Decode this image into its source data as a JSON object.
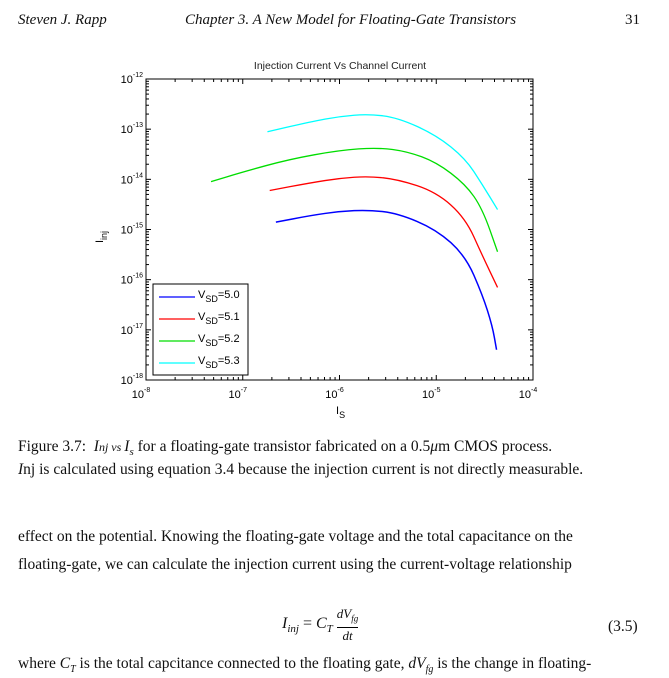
{
  "header": {
    "author": "Steven J. Rapp",
    "chapter": "Chapter 3.  A New Model for Floating-Gate Transistors",
    "page_number": "31"
  },
  "chart_data": {
    "type": "line",
    "title": "Injection Current Vs Channel Current",
    "xlabel": "I",
    "xlabel_sub": "S",
    "ylabel": "I",
    "ylabel_sub": "inj",
    "x_scale": "log",
    "y_scale": "log",
    "xlim": [
      1e-08,
      0.0001
    ],
    "ylim": [
      1e-18,
      1e-12
    ],
    "x_ticks": [
      {
        "base": "10",
        "exp": "-8"
      },
      {
        "base": "10",
        "exp": "-7"
      },
      {
        "base": "10",
        "exp": "-6"
      },
      {
        "base": "10",
        "exp": "-5"
      },
      {
        "base": "10",
        "exp": "-4"
      }
    ],
    "y_ticks": [
      {
        "base": "10",
        "exp": "-12"
      },
      {
        "base": "10",
        "exp": "-13"
      },
      {
        "base": "10",
        "exp": "-14"
      },
      {
        "base": "10",
        "exp": "-15"
      },
      {
        "base": "10",
        "exp": "-16"
      },
      {
        "base": "10",
        "exp": "-17"
      },
      {
        "base": "10",
        "exp": "-18"
      }
    ],
    "grid": false,
    "legend_position": "bottom-left",
    "series": [
      {
        "name": "V",
        "sub": "SD",
        "val": "=5.0",
        "color": "#0000ff",
        "points": [
          [
            2.2e-07,
            1.4e-15
          ],
          [
            5e-07,
            1.9e-15
          ],
          [
            1e-06,
            2.3e-15
          ],
          [
            2e-06,
            2.45e-15
          ],
          [
            4e-06,
            2.1e-15
          ],
          [
            1e-05,
            1e-15
          ],
          [
            2e-05,
            3e-16
          ],
          [
            3e-05,
            5e-17
          ],
          [
            3.8e-05,
            1.2e-17
          ],
          [
            4.2e-05,
            4e-18
          ]
        ]
      },
      {
        "name": "V",
        "sub": "SD",
        "val": "=5.1",
        "color": "#ff0000",
        "points": [
          [
            1.9e-07,
            6e-15
          ],
          [
            5e-07,
            8.5e-15
          ],
          [
            1e-06,
            1.05e-14
          ],
          [
            2e-06,
            1.15e-14
          ],
          [
            4e-06,
            1e-14
          ],
          [
            1e-05,
            5.6e-15
          ],
          [
            2e-05,
            1.7e-15
          ],
          [
            3e-05,
            3e-16
          ],
          [
            4.3e-05,
            7e-17
          ]
        ]
      },
      {
        "name": "V",
        "sub": "SD",
        "val": "=5.2",
        "color": "#00dd00",
        "points": [
          [
            4.7e-08,
            9e-15
          ],
          [
            1e-07,
            1.4e-14
          ],
          [
            3e-07,
            2.5e-14
          ],
          [
            1e-06,
            3.8e-14
          ],
          [
            2.5e-06,
            4.3e-14
          ],
          [
            5e-06,
            3.6e-14
          ],
          [
            1e-05,
            2.2e-14
          ],
          [
            2e-05,
            8e-15
          ],
          [
            3e-05,
            2.6e-15
          ],
          [
            4.3e-05,
            3.6e-16
          ]
        ]
      },
      {
        "name": "V",
        "sub": "SD",
        "val": "=5.3",
        "color": "#00ffff",
        "points": [
          [
            1.8e-07,
            8.9e-14
          ],
          [
            5e-07,
            1.4e-13
          ],
          [
            1e-06,
            1.8e-13
          ],
          [
            2e-06,
            2e-13
          ],
          [
            4e-06,
            1.7e-13
          ],
          [
            1e-05,
            7.6e-14
          ],
          [
            2e-05,
            2.6e-14
          ],
          [
            3e-05,
            7.8e-15
          ],
          [
            4.3e-05,
            2.5e-15
          ]
        ]
      }
    ]
  },
  "caption": {
    "label": "Figure 3.7:",
    "line1_a": "I",
    "line1_b": "nj vs ",
    "line1_c": "I",
    "line1_d": "s",
    "line1_e": " for a floating-gate transistor fabricated on a 0.5",
    "line1_f": "μ",
    "line1_g": "m CMOS process.",
    "line2_a": "I",
    "line2_b": "nj is calculated using equation 3.4 because the injection current is not directly measurable."
  },
  "body": {
    "line1": "effect on the potential.  Knowing the floating-gate voltage and the total capacitance on the",
    "line2": "floating-gate, we can calculate the injection current using the current-voltage relationship",
    "equation_number": "(3.5)",
    "line3_a": "where ",
    "line3_b": " is the total capcitance connected to the floating gate, ",
    "line3_c": " is the change in floating-"
  }
}
